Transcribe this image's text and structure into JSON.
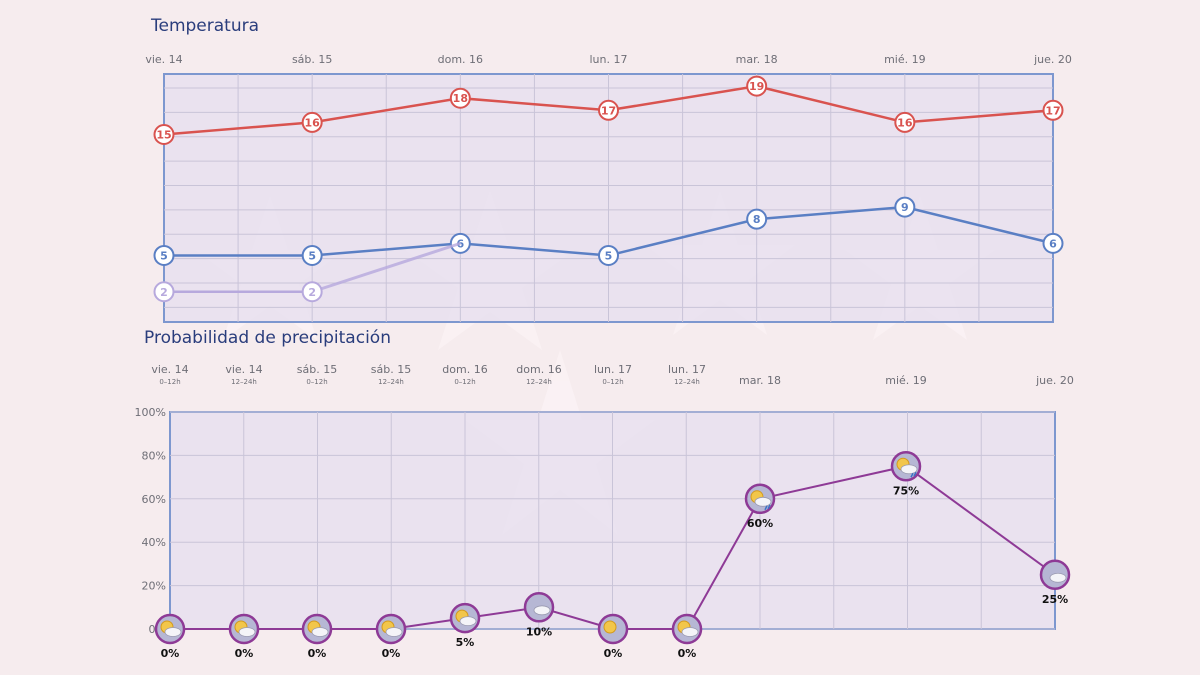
{
  "chart_data": [
    {
      "type": "line",
      "title": "Temperatura",
      "categories": [
        "vie. 14",
        "sáb. 15",
        "dom. 16",
        "lun. 17",
        "mar. 18",
        "mié. 19",
        "jue. 20"
      ],
      "series": [
        {
          "values": [
            15,
            16,
            18,
            17,
            19,
            16,
            17
          ],
          "color": "#d9534f"
        },
        {
          "values": [
            5,
            5,
            6,
            5,
            8,
            9,
            6
          ],
          "color": "#5a7fc4"
        },
        {
          "values": [
            2,
            2,
            null,
            null,
            null,
            null,
            null
          ],
          "color": "#b7a9dd"
        }
      ],
      "ylim": [
        -0.5,
        20
      ],
      "grid": true
    },
    {
      "type": "line",
      "title": "Probabilidad de precipitación",
      "categories": [
        {
          "label": "vie. 14",
          "sub": "0–12h"
        },
        {
          "label": "vie. 14",
          "sub": "12–24h"
        },
        {
          "label": "sáb. 15",
          "sub": "0–12h"
        },
        {
          "label": "sáb. 15",
          "sub": "12–24h"
        },
        {
          "label": "dom. 16",
          "sub": "0–12h"
        },
        {
          "label": "dom. 16",
          "sub": "12–24h"
        },
        {
          "label": "lun. 17",
          "sub": "0–12h"
        },
        {
          "label": "lun. 17",
          "sub": "12–24h"
        },
        {
          "label": "mar. 18",
          "sub": ""
        },
        {
          "label": "mié. 19",
          "sub": ""
        },
        {
          "label": "jue. 20",
          "sub": ""
        }
      ],
      "values": [
        0,
        0,
        0,
        0,
        5,
        10,
        0,
        0,
        60,
        75,
        25
      ],
      "value_labels": [
        "0%",
        "0%",
        "0%",
        "0%",
        "5%",
        "10%",
        "0%",
        "0%",
        "60%",
        "75%",
        "25%"
      ],
      "icons": [
        "partly-cloudy-icon",
        "partly-cloudy-icon",
        "sun-cloud-icon",
        "sun-cloud-icon",
        "partly-cloudy-icon",
        "cloudy-icon",
        "sun-icon",
        "partly-cloudy-icon",
        "rain-icon",
        "rain-icon",
        "cloudy-icon"
      ],
      "yticks": [
        "0%",
        "20%",
        "40%",
        "60%",
        "80%",
        "100%"
      ],
      "ylim": [
        0,
        100
      ],
      "color": "#8e3a96",
      "grid": true
    }
  ]
}
